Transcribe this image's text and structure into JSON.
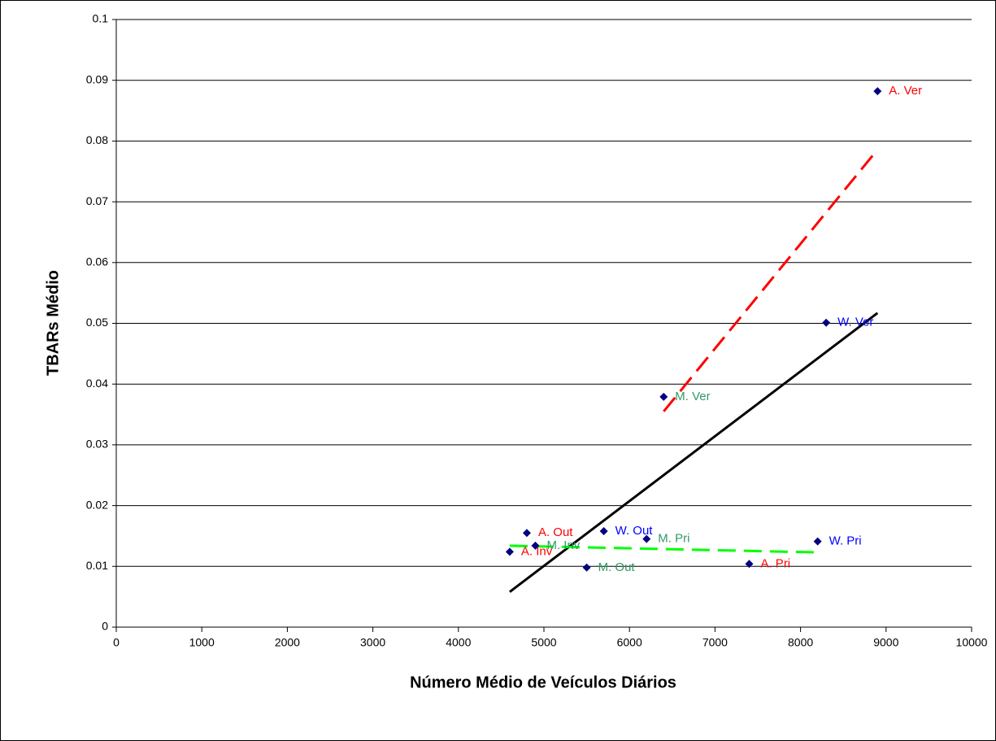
{
  "chart_data": {
    "type": "scatter",
    "x_label": "Número Médio de Veículos Diários",
    "y_label": "TBARs Médio",
    "xlim": [
      0,
      10000
    ],
    "ylim": [
      0,
      0.1
    ],
    "xticks": [
      0,
      1000,
      2000,
      3000,
      4000,
      5000,
      6000,
      7000,
      8000,
      9000,
      10000
    ],
    "yticks": [
      0,
      0.01,
      0.02,
      0.03,
      0.04,
      0.05,
      0.06,
      0.07,
      0.08,
      0.09,
      0.1
    ],
    "grid": true,
    "points": {
      "color": "#000080",
      "x": [
        8900,
        8300,
        6400,
        4800,
        5700,
        4900,
        4600,
        6200,
        8200,
        7400,
        5500
      ],
      "values": [
        0.0882,
        0.0501,
        0.0379,
        0.0155,
        0.0158,
        0.0134,
        0.0124,
        0.0145,
        0.0141,
        0.0104,
        0.0098
      ],
      "labels": [
        "A. Ver",
        "W. Ver",
        "M. Ver",
        "A. Out",
        "W. Out",
        "M. Inv",
        "A. Inv",
        "M. Pri",
        "W. Pri",
        "A. Pri",
        "M. Out"
      ],
      "label_colors": [
        "#ff0000",
        "#0000ff",
        "#339966",
        "#ff0000",
        "#0000ff",
        "#339966",
        "#ff0000",
        "#339966",
        "#0000ff",
        "#ff0000",
        "#339966"
      ]
    },
    "trendlines": [
      {
        "color": "#000000",
        "dashed": false,
        "x": [
          4600,
          8900
        ],
        "values": [
          0.0058,
          0.0517
        ]
      },
      {
        "color": "#ff0000",
        "dashed": true,
        "x": [
          6400,
          8900
        ],
        "values": [
          0.0355,
          0.0786
        ]
      },
      {
        "color": "#00ff00",
        "dashed": true,
        "x": [
          4600,
          8200
        ],
        "values": [
          0.0134,
          0.0123
        ]
      }
    ]
  }
}
